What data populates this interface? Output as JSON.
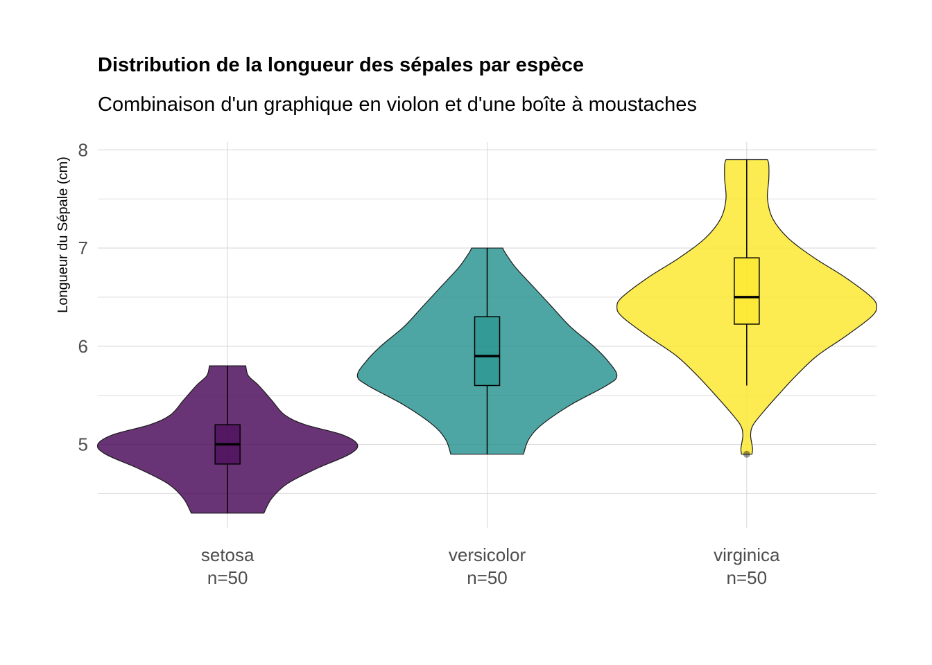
{
  "chart_data": {
    "type": "violin",
    "title": "Distribution de la longueur des sépales par espèce",
    "subtitle": "Combinaison d'un graphique en violon et d'une boîte à moustaches",
    "xlabel": "",
    "ylabel": "Longueur du Sépale (cm)",
    "ylim": [
      4.15,
      8.08
    ],
    "yticks": [
      5,
      6,
      7,
      8
    ],
    "y_minor_ticks": [
      4.5,
      5.5,
      6.5,
      7.5
    ],
    "grid": true,
    "legend": "none",
    "categories": [
      "setosa",
      "versicolor",
      "virginica"
    ],
    "category_labels": [
      [
        "setosa",
        "n=50"
      ],
      [
        "versicolor",
        "n=50"
      ],
      [
        "virginica",
        "n=50"
      ]
    ],
    "series": [
      {
        "category": "setosa",
        "color": "#440154",
        "n": 50,
        "min": 4.3,
        "q1": 4.8,
        "median": 5.0,
        "q3": 5.2,
        "max": 5.8,
        "outliers": [],
        "density": [
          [
            4.3,
            0.28
          ],
          [
            4.45,
            0.34
          ],
          [
            4.6,
            0.46
          ],
          [
            4.75,
            0.68
          ],
          [
            4.9,
            0.94
          ],
          [
            5.0,
            1.0
          ],
          [
            5.1,
            0.88
          ],
          [
            5.2,
            0.6
          ],
          [
            5.3,
            0.44
          ],
          [
            5.45,
            0.34
          ],
          [
            5.6,
            0.24
          ],
          [
            5.7,
            0.16
          ],
          [
            5.8,
            0.14
          ]
        ]
      },
      {
        "category": "versicolor",
        "color": "#21908C",
        "n": 50,
        "min": 4.9,
        "q1": 5.6,
        "median": 5.9,
        "q3": 6.3,
        "max": 7.0,
        "outliers": [],
        "density": [
          [
            4.9,
            0.28
          ],
          [
            5.05,
            0.32
          ],
          [
            5.2,
            0.42
          ],
          [
            5.4,
            0.64
          ],
          [
            5.6,
            0.92
          ],
          [
            5.7,
            1.0
          ],
          [
            5.85,
            0.93
          ],
          [
            6.0,
            0.82
          ],
          [
            6.2,
            0.64
          ],
          [
            6.4,
            0.5
          ],
          [
            6.6,
            0.36
          ],
          [
            6.8,
            0.22
          ],
          [
            6.95,
            0.14
          ],
          [
            7.0,
            0.12
          ]
        ]
      },
      {
        "category": "virginica",
        "color": "#FDE725",
        "n": 50,
        "min": 5.6,
        "q1": 6.225,
        "median": 6.5,
        "q3": 6.9,
        "max": 7.9,
        "outliers": [
          4.9
        ],
        "density": [
          [
            4.9,
            0.04
          ],
          [
            4.95,
            0.045
          ],
          [
            5.0,
            0.04
          ],
          [
            5.1,
            0.03
          ],
          [
            5.2,
            0.05
          ],
          [
            5.35,
            0.14
          ],
          [
            5.5,
            0.24
          ],
          [
            5.7,
            0.38
          ],
          [
            5.9,
            0.54
          ],
          [
            6.1,
            0.76
          ],
          [
            6.3,
            0.96
          ],
          [
            6.4,
            1.0
          ],
          [
            6.5,
            0.96
          ],
          [
            6.7,
            0.76
          ],
          [
            6.9,
            0.52
          ],
          [
            7.1,
            0.32
          ],
          [
            7.3,
            0.2
          ],
          [
            7.5,
            0.16
          ],
          [
            7.7,
            0.17
          ],
          [
            7.85,
            0.17
          ],
          [
            7.9,
            0.16
          ]
        ]
      }
    ]
  }
}
